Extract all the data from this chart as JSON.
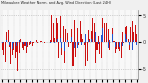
{
  "title": "Milwaukee Weather Norm. and Avg. Wind Direction (Last 24H)",
  "background_color": "#f0f0f0",
  "plot_bg_color": "#f8f8f8",
  "grid_color": "#aaaaaa",
  "bar_color_red": "#cc1111",
  "bar_color_blue": "#2255cc",
  "ylim": [
    -7.0,
    6.0
  ],
  "y_ticks_right": [
    5,
    0,
    -5
  ],
  "y_tick_labels": [
    "5",
    "0",
    "-5"
  ],
  "n_points": 96,
  "seed": 7
}
